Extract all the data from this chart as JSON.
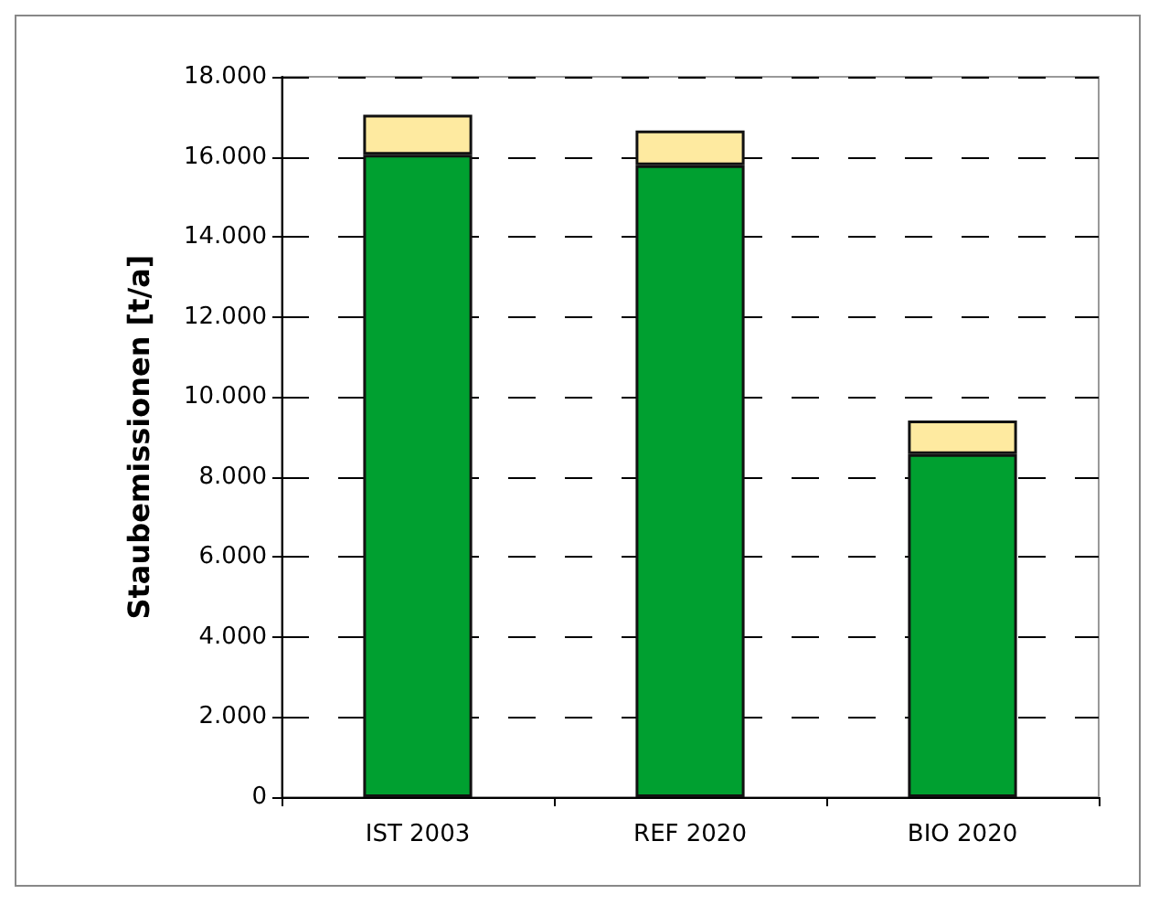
{
  "chart_data": {
    "type": "bar",
    "ylabel": "Staubemissionen [t/a]",
    "categories": [
      "IST 2003",
      "REF 2020",
      "BIO 2020"
    ],
    "stacked": true,
    "series": [
      {
        "color": "#00a030",
        "values": [
          16050,
          15790,
          8570
        ]
      },
      {
        "color": "#feeaa0",
        "values": [
          1000,
          870,
          840
        ]
      }
    ],
    "ylim": [
      0,
      18000
    ],
    "yticks": [
      0,
      {
        "value": 2000,
        "label": "2.000"
      },
      {
        "value": 4000,
        "label": "4.000"
      },
      {
        "value": 6000,
        "label": "6.000"
      },
      {
        "value": 8000,
        "label": "8.000"
      },
      {
        "value": 10000,
        "label": "10.000"
      },
      {
        "value": 12000,
        "label": "12.000"
      },
      {
        "value": 14000,
        "label": "14.000"
      },
      {
        "value": 16000,
        "label": "16.000"
      },
      {
        "value": 18000,
        "label": "18.000"
      }
    ],
    "grid": "y"
  }
}
